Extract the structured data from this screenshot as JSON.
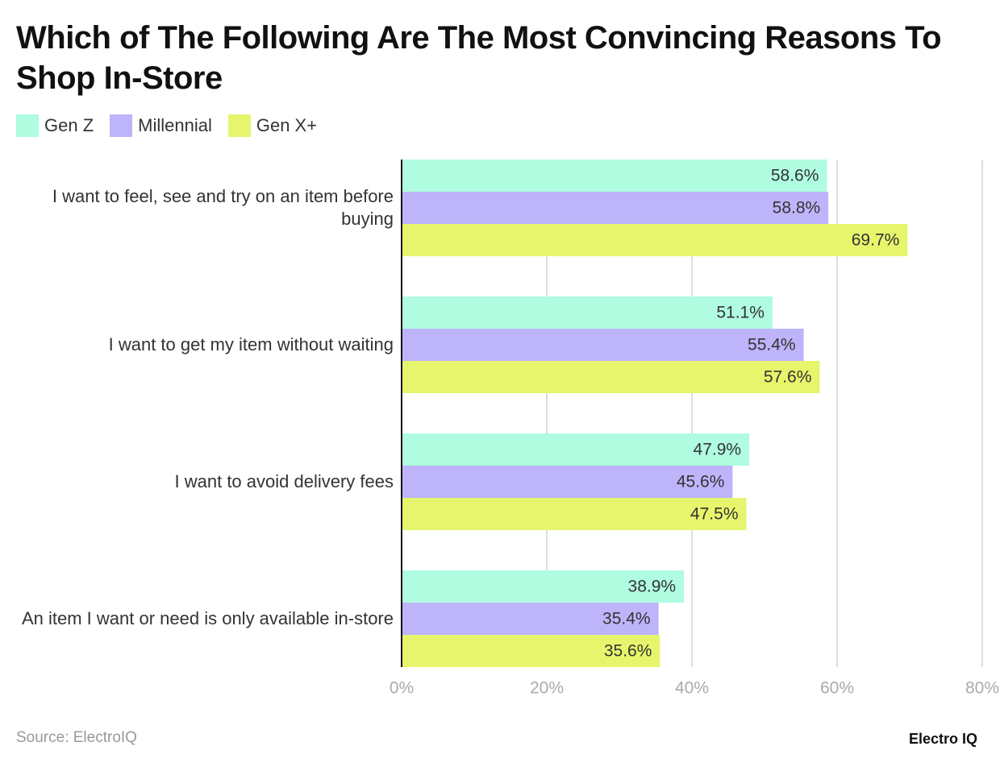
{
  "chart_data": {
    "type": "hbar",
    "title": "Which of The Following Are The Most Convincing Reasons To Shop In-Store",
    "categories": [
      "I want to feel, see and try on an item before buying",
      "I want to get my item without waiting",
      "I want to avoid delivery fees",
      "An item I want or need is only available in-store"
    ],
    "series": [
      {
        "name": "Gen Z",
        "color": "#b0fce0",
        "values": [
          58.6,
          51.1,
          47.9,
          38.9
        ],
        "value_labels": [
          "58.6%",
          "51.1%",
          "47.9%",
          "38.9%"
        ]
      },
      {
        "name": "Millennial",
        "color": "#bdb4fa",
        "values": [
          58.8,
          55.4,
          45.6,
          35.4
        ],
        "value_labels": [
          "58.8%",
          "55.4%",
          "45.6%",
          "35.4%"
        ]
      },
      {
        "name": "Gen X+",
        "color": "#e6f56b",
        "values": [
          69.7,
          57.6,
          47.5,
          35.6
        ],
        "value_labels": [
          "69.7%",
          "57.6%",
          "47.5%",
          "35.6%"
        ]
      }
    ],
    "xlim": [
      0,
      80
    ],
    "xticks": [
      {
        "value": 0,
        "label": "0%"
      },
      {
        "value": 20,
        "label": "20%"
      },
      {
        "value": 40,
        "label": "40%"
      },
      {
        "value": 60,
        "label": "60%"
      },
      {
        "value": 80,
        "label": "80%"
      }
    ],
    "grid": true,
    "source": "Source: ElectroIQ",
    "brand": "Electro IQ"
  }
}
